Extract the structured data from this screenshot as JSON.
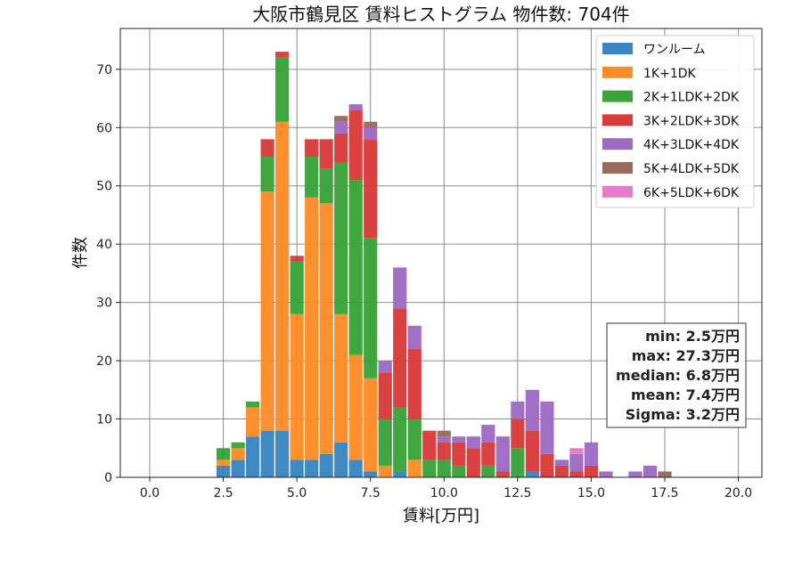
{
  "chart_data": {
    "type": "bar",
    "stacked": true,
    "title": "大阪市鶴見区 賃料ヒストグラム 物件数: 704件",
    "xlabel": "賃料[万円]",
    "ylabel": "件数",
    "xlim": [
      -1.0,
      20.8
    ],
    "ylim": [
      0,
      77
    ],
    "bin_width": 0.5,
    "grid": true,
    "legend_position": "top-right",
    "x_ticks": [
      0.0,
      2.5,
      5.0,
      7.5,
      10.0,
      12.5,
      15.0,
      17.5,
      20.0
    ],
    "x_tick_labels": [
      "0.0",
      "2.5",
      "5.0",
      "7.5",
      "10.0",
      "12.5",
      "15.0",
      "17.5",
      "20.0"
    ],
    "y_ticks": [
      0,
      10,
      20,
      30,
      40,
      50,
      60,
      70
    ],
    "y_tick_labels": [
      "0",
      "10",
      "20",
      "30",
      "40",
      "50",
      "60",
      "70"
    ],
    "bins": [
      2.5,
      3.0,
      3.5,
      4.0,
      4.5,
      5.0,
      5.5,
      6.0,
      6.5,
      7.0,
      7.5,
      8.0,
      8.5,
      9.0,
      9.5,
      10.0,
      10.5,
      11.0,
      11.5,
      12.0,
      12.5,
      13.0,
      13.5,
      14.0,
      14.5,
      15.0,
      15.5,
      16.0,
      16.5,
      17.0,
      17.5
    ],
    "series": [
      {
        "name": "ワンルーム",
        "color": "#3a86c2",
        "values": [
          2,
          3,
          7,
          8,
          8,
          3,
          3,
          4,
          6,
          3,
          1,
          0,
          1,
          0,
          0,
          0,
          0,
          0,
          0,
          0,
          0,
          1,
          0,
          0,
          0,
          0,
          0,
          0,
          0,
          0,
          0
        ]
      },
      {
        "name": "1K+1DK",
        "color": "#ff8c26",
        "values": [
          1,
          2,
          5,
          41,
          53,
          25,
          45,
          43,
          22,
          18,
          16,
          2,
          0,
          3,
          0,
          0,
          0,
          0,
          0,
          0,
          0,
          0,
          0,
          0,
          0,
          0,
          0,
          0,
          0,
          0,
          0
        ]
      },
      {
        "name": "2K+1LDK+2DK",
        "color": "#3aa33a",
        "values": [
          2,
          1,
          1,
          6,
          11,
          9,
          7,
          6,
          26,
          30,
          24,
          8,
          11,
          7,
          3,
          3,
          2,
          0,
          2,
          0,
          5,
          0,
          0,
          0,
          0,
          0,
          0,
          0,
          0,
          0,
          0
        ]
      },
      {
        "name": "3K+2LDK+3DK",
        "color": "#d93b3b",
        "values": [
          0,
          0,
          0,
          3,
          1,
          1,
          3,
          5,
          5,
          12,
          17,
          8,
          17,
          12,
          5,
          3,
          4,
          5,
          4,
          1,
          5,
          7,
          4,
          2,
          1,
          2,
          0,
          0,
          0,
          0,
          0
        ]
      },
      {
        "name": "4K+3LDK+4DK",
        "color": "#9e6ac4",
        "values": [
          0,
          0,
          0,
          0,
          0,
          0,
          0,
          0,
          2,
          1,
          2,
          2,
          7,
          4,
          0,
          1,
          1,
          2,
          3,
          6,
          3,
          7,
          9,
          1,
          3,
          4,
          1,
          0,
          1,
          2,
          0
        ]
      },
      {
        "name": "5K+4LDK+5DK",
        "color": "#9a6a5a",
        "values": [
          0,
          0,
          0,
          0,
          0,
          0,
          0,
          0,
          1,
          0,
          1,
          0,
          0,
          0,
          0,
          1,
          0,
          0,
          0,
          0,
          0,
          0,
          0,
          0,
          0,
          0,
          0,
          0,
          0,
          0,
          1
        ]
      },
      {
        "name": "6K+5LDK+6DK",
        "color": "#e77ac9",
        "values": [
          0,
          0,
          0,
          0,
          0,
          0,
          0,
          0,
          0,
          0,
          0,
          0,
          0,
          0,
          0,
          0,
          0,
          0,
          0,
          0,
          0,
          0,
          0,
          0,
          1,
          0,
          0,
          0,
          0,
          0,
          0
        ]
      }
    ],
    "stats": [
      "min: 2.5万円",
      "max: 27.3万円",
      "median: 6.8万円",
      "mean: 7.4万円",
      "Sigma: 3.2万円"
    ]
  }
}
